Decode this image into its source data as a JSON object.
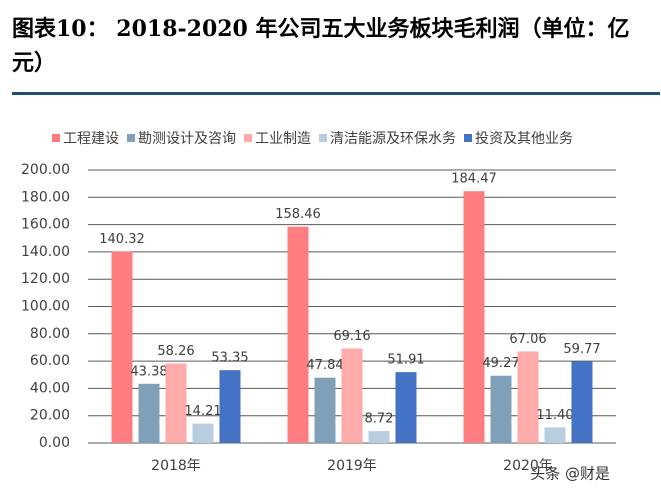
{
  "chart_data": {
    "type": "bar",
    "title": "图表10：  2018-2020 年公司五大业务板块毛利润（单位：亿元）",
    "categories": [
      "2018年",
      "2019年",
      "2020年"
    ],
    "series": [
      {
        "name": "工程建设",
        "color": "#ff7c80",
        "values": [
          140.32,
          158.46,
          184.47
        ],
        "value_labels": [
          "140.32",
          "158.46",
          "184.47"
        ]
      },
      {
        "name": "勘测设计及咨询",
        "color": "#809fb9",
        "values": [
          43.38,
          47.84,
          49.27
        ],
        "value_labels": [
          "43.38",
          "47.84",
          "49.27"
        ]
      },
      {
        "name": "工业制造",
        "color": "#ffaaab",
        "values": [
          58.26,
          69.16,
          67.06
        ],
        "value_labels": [
          "58.26",
          "69.16",
          "67.06"
        ]
      },
      {
        "name": "清洁能源及环保水务",
        "color": "#b9cde1",
        "values": [
          14.21,
          8.72,
          11.4
        ],
        "value_labels": [
          "14.21",
          "8.72",
          "11.40"
        ]
      },
      {
        "name": "投资及其他业务",
        "color": "#4472c4",
        "values": [
          53.35,
          51.91,
          59.77
        ],
        "value_labels": [
          "53.35",
          "51.91",
          "59.77"
        ]
      }
    ],
    "ylim": [
      0,
      200
    ],
    "yticks": [
      {
        "value": 0,
        "label": "0.00"
      },
      {
        "value": 20,
        "label": "20.00"
      },
      {
        "value": 40,
        "label": "40.00"
      },
      {
        "value": 60,
        "label": "60.00"
      },
      {
        "value": 80,
        "label": "80.00"
      },
      {
        "value": 100,
        "label": "100.00"
      },
      {
        "value": 120,
        "label": "120.00"
      },
      {
        "value": 140,
        "label": "140.00"
      },
      {
        "value": 160,
        "label": "160.00"
      },
      {
        "value": 180,
        "label": "180.00"
      },
      {
        "value": 200,
        "label": "200.00"
      }
    ],
    "grid": true,
    "legend": "top",
    "watermark": "头条 @财是"
  }
}
